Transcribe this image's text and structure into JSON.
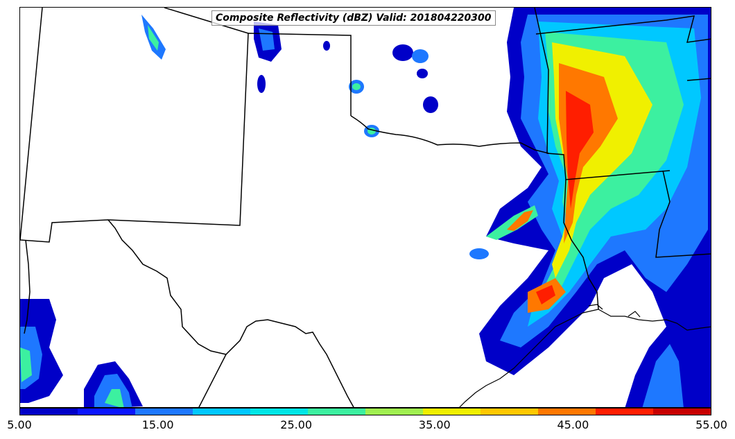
{
  "title": "Composite Reflectivity (dBZ) Valid: 201804220300",
  "colorbar": {
    "colors": [
      "#0000c8",
      "#0a14ff",
      "#1e78ff",
      "#00c8ff",
      "#00e6e6",
      "#3cf0a0",
      "#a0f050",
      "#f0f000",
      "#ffc800",
      "#ff7800",
      "#ff1e00",
      "#c80000"
    ],
    "tick_labels": [
      "5.00",
      "15.00",
      "25.00",
      "35.00",
      "45.00",
      "55.00"
    ]
  }
}
